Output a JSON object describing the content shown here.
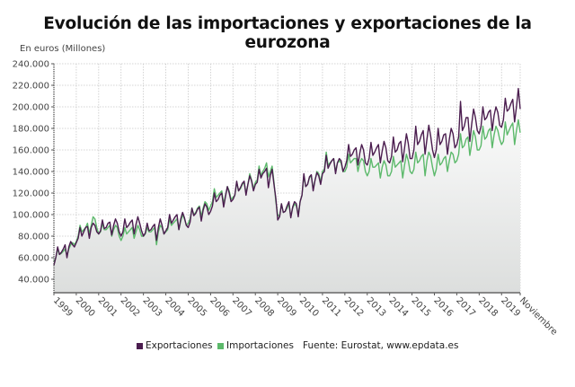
{
  "chart_data": {
    "type": "line",
    "title": "Evolución de las importaciones y exportaciones de la eurozona",
    "ylabel": "En euros (Millones)",
    "xlabel": "",
    "frequency": "monthly",
    "x_start": "1999-01",
    "x_end": "2019-11",
    "x_tick_labels": [
      "1999",
      "2000",
      "2001",
      "2002",
      "2003",
      "2004",
      "2005",
      "2006",
      "2007",
      "2008",
      "2009",
      "2010",
      "2011",
      "2012",
      "2013",
      "2014",
      "2015",
      "2016",
      "2017",
      "2018",
      "2019",
      "Noviembre"
    ],
    "y_tick_labels": [
      "240.000",
      "220.000",
      "200.000",
      "180.000",
      "160.000",
      "140.000",
      "120.000",
      "100.000",
      "80.000",
      "60.000",
      "40.000"
    ],
    "y_ticks": [
      240000,
      220000,
      200000,
      180000,
      160000,
      140000,
      120000,
      100000,
      80000,
      60000,
      40000
    ],
    "ylim": [
      27500,
      240000
    ],
    "grid": true,
    "legend_position": "bottom",
    "source": "Fuente: Eurostat, www.epdata.es",
    "series": [
      {
        "name": "Exportaciones",
        "color": "#4b1d4f",
        "values": [
          53000,
          60000,
          70000,
          63000,
          65000,
          68000,
          72000,
          60000,
          70000,
          75000,
          72000,
          70000,
          74000,
          78000,
          88000,
          80000,
          84000,
          88000,
          89000,
          78000,
          88000,
          92000,
          90000,
          84000,
          82000,
          85000,
          95000,
          87000,
          88000,
          92000,
          93000,
          81000,
          90000,
          96000,
          92000,
          84000,
          80000,
          84000,
          96000,
          88000,
          90000,
          93000,
          95000,
          82000,
          91000,
          98000,
          92000,
          85000,
          80000,
          83000,
          92000,
          85000,
          86000,
          89000,
          91000,
          76000,
          88000,
          96000,
          90000,
          82000,
          85000,
          88000,
          100000,
          92000,
          95000,
          98000,
          100000,
          86000,
          96000,
          102000,
          97000,
          90000,
          88000,
          93000,
          106000,
          99000,
          101000,
          105000,
          107000,
          94000,
          104000,
          110000,
          107000,
          100000,
          103000,
          108000,
          120000,
          112000,
          114000,
          118000,
          120000,
          107000,
          117000,
          126000,
          120000,
          112000,
          114000,
          118000,
          131000,
          122000,
          125000,
          129000,
          131000,
          118000,
          128000,
          136000,
          131000,
          122000,
          128000,
          130000,
          142000,
          134000,
          138000,
          140000,
          143000,
          125000,
          136000,
          142000,
          128000,
          115000,
          95000,
          98000,
          110000,
          102000,
          103000,
          108000,
          112000,
          97000,
          107000,
          112000,
          110000,
          98000,
          112000,
          118000,
          138000,
          126000,
          128000,
          135000,
          137000,
          122000,
          132000,
          139000,
          136000,
          128000,
          138000,
          140000,
          155000,
          143000,
          147000,
          150000,
          152000,
          138000,
          148000,
          152000,
          150000,
          140000,
          144000,
          150000,
          165000,
          154000,
          156000,
          160000,
          162000,
          146000,
          157000,
          165000,
          160000,
          148000,
          146000,
          152000,
          167000,
          155000,
          158000,
          162000,
          165000,
          148000,
          159000,
          168000,
          162000,
          150000,
          148000,
          154000,
          172000,
          158000,
          160000,
          166000,
          168000,
          149000,
          162000,
          175000,
          166000,
          152000,
          152000,
          160000,
          182000,
          165000,
          168000,
          174000,
          178000,
          156000,
          170000,
          183000,
          173000,
          160000,
          153000,
          160000,
          180000,
          165000,
          168000,
          174000,
          175000,
          156000,
          170000,
          180000,
          175000,
          162000,
          165000,
          172000,
          205000,
          178000,
          182000,
          190000,
          190000,
          168000,
          184000,
          198000,
          190000,
          178000,
          175000,
          182000,
          200000,
          188000,
          190000,
          195000,
          197000,
          178000,
          192000,
          200000,
          195000,
          183000,
          181000,
          188000,
          208000,
          196000,
          198000,
          203000,
          207000,
          186000,
          200000,
          217000,
          198000
        ]
      },
      {
        "name": "Importaciones",
        "color": "#5cb96b",
        "values": [
          56000,
          60000,
          68000,
          63000,
          64000,
          66000,
          68000,
          62000,
          68000,
          72000,
          74000,
          72000,
          75000,
          80000,
          90000,
          84000,
          86000,
          88000,
          92000,
          82000,
          90000,
          98000,
          96000,
          88000,
          82000,
          84000,
          92000,
          86000,
          86000,
          88000,
          90000,
          80000,
          86000,
          90000,
          88000,
          80000,
          76000,
          80000,
          88000,
          82000,
          84000,
          86000,
          88000,
          78000,
          84000,
          90000,
          86000,
          80000,
          80000,
          82000,
          88000,
          84000,
          84000,
          86000,
          88000,
          72000,
          84000,
          90000,
          88000,
          82000,
          84000,
          86000,
          96000,
          90000,
          92000,
          94000,
          96000,
          86000,
          94000,
          100000,
          96000,
          90000,
          92000,
          96000,
          106000,
          100000,
          102000,
          106000,
          108000,
          98000,
          106000,
          112000,
          110000,
          104000,
          108000,
          112000,
          124000,
          116000,
          118000,
          120000,
          122000,
          110000,
          118000,
          126000,
          122000,
          114000,
          116000,
          118000,
          130000,
          122000,
          124000,
          128000,
          130000,
          120000,
          128000,
          138000,
          132000,
          124000,
          130000,
          132000,
          145000,
          136000,
          140000,
          143000,
          148000,
          135000,
          140000,
          145000,
          130000,
          112000,
          100000,
          98000,
          110000,
          102000,
          103000,
          106000,
          110000,
          98000,
          106000,
          110000,
          108000,
          100000,
          112000,
          118000,
          136000,
          126000,
          128000,
          134000,
          136000,
          124000,
          132000,
          140000,
          138000,
          130000,
          140000,
          142000,
          158000,
          146000,
          148000,
          150000,
          152000,
          140000,
          148000,
          150000,
          148000,
          140000,
          140000,
          144000,
          156000,
          148000,
          150000,
          152000,
          152000,
          140000,
          148000,
          152000,
          150000,
          140000,
          136000,
          140000,
          152000,
          144000,
          144000,
          146000,
          148000,
          134000,
          144000,
          150000,
          146000,
          136000,
          136000,
          140000,
          154000,
          144000,
          146000,
          148000,
          150000,
          134000,
          146000,
          156000,
          150000,
          140000,
          138000,
          142000,
          158000,
          148000,
          150000,
          154000,
          156000,
          136000,
          150000,
          158000,
          154000,
          144000,
          136000,
          142000,
          156000,
          146000,
          148000,
          152000,
          154000,
          140000,
          150000,
          158000,
          156000,
          148000,
          150000,
          156000,
          175000,
          162000,
          164000,
          170000,
          172000,
          155000,
          166000,
          178000,
          172000,
          160000,
          160000,
          164000,
          182000,
          170000,
          172000,
          178000,
          180000,
          162000,
          174000,
          182000,
          178000,
          170000,
          165000,
          168000,
          186000,
          174000,
          178000,
          182000,
          185000,
          165000,
          178000,
          188000,
          176000
        ]
      }
    ]
  }
}
